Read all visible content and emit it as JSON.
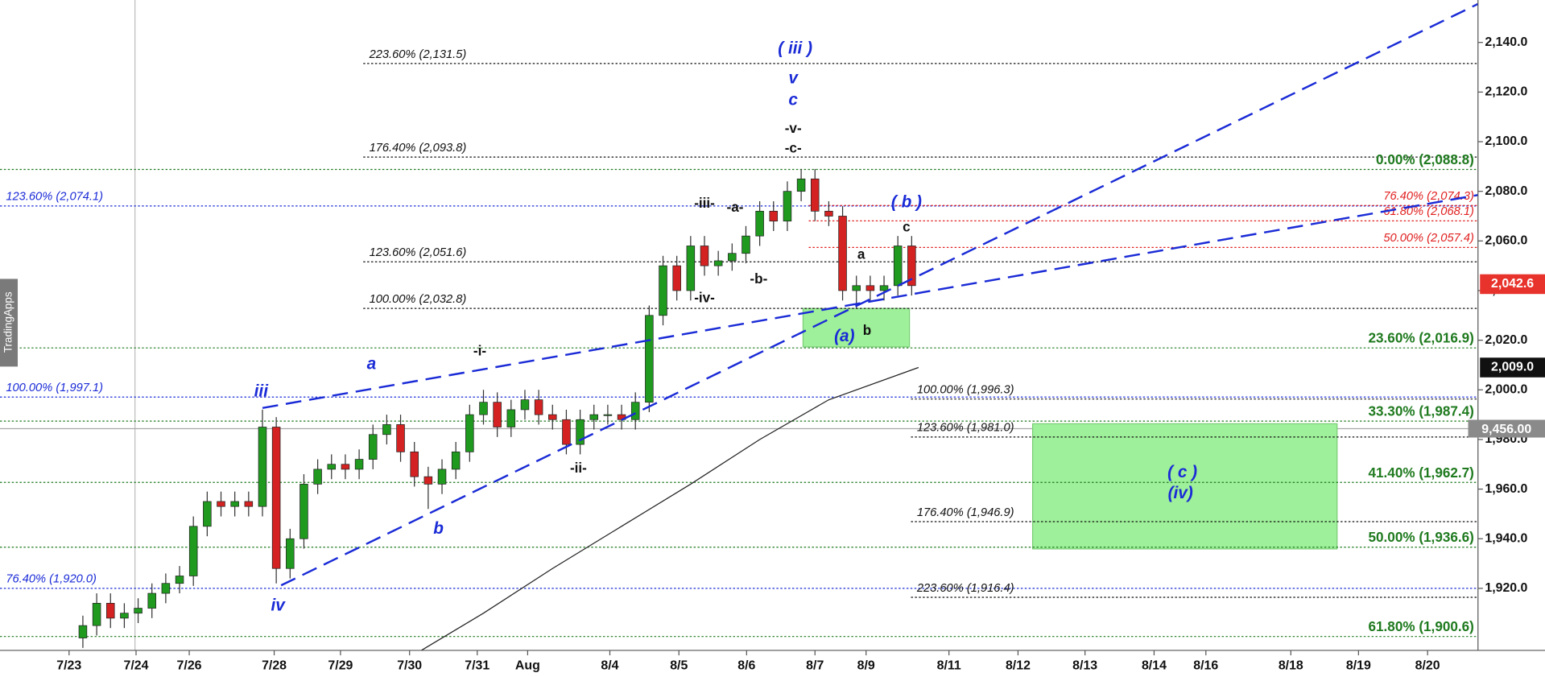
{
  "chart_data": {
    "type": "candlestick",
    "watermark": "TradingApps",
    "up_color": "#1f9a1f",
    "down_color": "#d42222",
    "xlim": [
      0,
      214
    ],
    "xticks": [
      {
        "value": 10,
        "label": "7/23"
      },
      {
        "value": 19.7,
        "label": "7/24"
      },
      {
        "value": 27.4,
        "label": "7/26"
      },
      {
        "value": 39.7,
        "label": "7/28"
      },
      {
        "value": 49.3,
        "label": "7/29"
      },
      {
        "value": 59.3,
        "label": "7/30"
      },
      {
        "value": 69.1,
        "label": "7/31"
      },
      {
        "value": 76.4,
        "label": "Aug"
      },
      {
        "value": 88.3,
        "label": "8/4"
      },
      {
        "value": 98.3,
        "label": "8/5"
      },
      {
        "value": 108.1,
        "label": "8/6"
      },
      {
        "value": 118,
        "label": "8/7"
      },
      {
        "value": 125.4,
        "label": "8/9"
      },
      {
        "value": 137.4,
        "label": "8/11"
      },
      {
        "value": 147.4,
        "label": "8/12"
      },
      {
        "value": 157.1,
        "label": "8/13"
      },
      {
        "value": 167.1,
        "label": "8/14"
      },
      {
        "value": 174.6,
        "label": "8/16"
      },
      {
        "value": 186.9,
        "label": "8/18"
      },
      {
        "value": 196.7,
        "label": "8/19"
      },
      {
        "value": 206.7,
        "label": "8/20"
      }
    ],
    "ylim": [
      1895,
      2157.1
    ],
    "yticks": [
      {
        "value": 1920,
        "label": "1,920.0"
      },
      {
        "value": 1940,
        "label": "1,940.0"
      },
      {
        "value": 1960,
        "label": "1,960.0"
      },
      {
        "value": 1980,
        "label": "1,980.0"
      },
      {
        "value": 2000,
        "label": "2,000.0"
      },
      {
        "value": 2020,
        "label": "2,020.0"
      },
      {
        "value": 2040,
        "label": "2,040.0"
      },
      {
        "value": 2060,
        "label": "2,060.0"
      },
      {
        "value": 2080,
        "label": "2,080.0"
      },
      {
        "value": 2100,
        "label": "2,100.0"
      },
      {
        "value": 2120,
        "label": "2,120.0"
      },
      {
        "value": 2140,
        "label": "2,140.0"
      }
    ],
    "x": [
      12,
      14,
      16,
      18,
      20,
      22,
      24,
      26,
      28,
      30,
      32,
      34,
      36,
      38,
      40,
      42,
      44,
      46,
      48,
      50,
      52,
      54,
      56,
      58,
      60,
      62,
      64,
      66,
      68,
      70,
      72,
      74,
      76,
      78,
      80,
      82,
      84,
      86,
      88,
      90,
      92,
      94,
      96,
      98,
      100,
      102,
      104,
      106,
      108,
      110,
      112,
      114,
      116,
      118,
      120,
      122,
      124,
      126,
      128,
      130,
      132
    ],
    "open": [
      1900,
      1905,
      1914,
      1908,
      1910,
      1912,
      1918,
      1922,
      1925,
      1945,
      1955,
      1953,
      1955,
      1953,
      1985,
      1928,
      1940,
      1962,
      1968,
      1970,
      1968,
      1972,
      1982,
      1986,
      1975,
      1965,
      1962,
      1968,
      1975,
      1990,
      1995,
      1985,
      1992,
      1996,
      1990,
      1988,
      1978,
      1988,
      1990,
      1990,
      1988,
      1995,
      2030,
      2050,
      2040,
      2058,
      2050,
      2052,
      2055,
      2062,
      2072,
      2068,
      2080,
      2085,
      2072,
      2070,
      2040,
      2042,
      2040,
      2042,
      2058
    ],
    "high": [
      1909,
      1918,
      1918,
      1914,
      1916,
      1922,
      1926,
      1929,
      1949,
      1959,
      1959,
      1959,
      1959,
      1992,
      1989,
      1944,
      1966,
      1972,
      1974,
      1974,
      1976,
      1986,
      1990,
      1990,
      1979,
      1969,
      1972,
      1979,
      1994,
      2000,
      1999,
      1996,
      2000,
      2000,
      1994,
      1992,
      1992,
      1994,
      1994,
      1994,
      1999,
      2034,
      2054,
      2054,
      2062,
      2062,
      2056,
      2059,
      2066,
      2076,
      2076,
      2084,
      2089,
      2089,
      2076,
      2074,
      2046,
      2046,
      2046,
      2062,
      2062
    ],
    "low": [
      1896,
      1901,
      1904,
      1904,
      1906,
      1908,
      1914,
      1918,
      1921,
      1941,
      1949,
      1949,
      1949,
      1949,
      1922,
      1924,
      1936,
      1958,
      1964,
      1964,
      1964,
      1968,
      1978,
      1971,
      1961,
      1952,
      1958,
      1964,
      1971,
      1986,
      1981,
      1981,
      1988,
      1986,
      1984,
      1974,
      1974,
      1984,
      1986,
      1984,
      1984,
      1991,
      2026,
      2036,
      2036,
      2046,
      2046,
      2048,
      2051,
      2058,
      2064,
      2064,
      2076,
      2068,
      2066,
      2036,
      2033,
      2036,
      2036,
      2038,
      2038
    ],
    "close": [
      1905,
      1914,
      1908,
      1910,
      1912,
      1918,
      1922,
      1925,
      1945,
      1955,
      1953,
      1955,
      1953,
      1985,
      1928,
      1940,
      1962,
      1968,
      1970,
      1968,
      1972,
      1982,
      1986,
      1975,
      1965,
      1962,
      1968,
      1975,
      1990,
      1995,
      1985,
      1992,
      1996,
      1990,
      1988,
      1978,
      1988,
      1990,
      1990,
      1988,
      1995,
      2030,
      2050,
      2040,
      2058,
      2050,
      2052,
      2055,
      2062,
      2072,
      2068,
      2080,
      2085,
      2072,
      2070,
      2040,
      2042,
      2040,
      2042,
      2058,
      2042
    ],
    "moving_average": {
      "color": "#222222",
      "x": [
        61,
        70,
        80,
        90,
        100,
        110,
        120,
        133
      ],
      "values": [
        1895,
        1910,
        1928,
        1945,
        1962,
        1980,
        1996,
        2009
      ]
    },
    "trend_lines": [
      {
        "color": "#1a2bd6",
        "x": [
          38,
          214
        ],
        "values": [
          1992.7,
          2078.5
        ]
      },
      {
        "color": "#1a2bd6",
        "x": [
          40.7,
          214
        ],
        "values": [
          1921.2,
          2155.5
        ]
      }
    ],
    "levels": [
      {
        "label": "223.60% (2,131.5)",
        "value": 2131.5,
        "color": "#111111",
        "x_start": 52.6,
        "align": "start"
      },
      {
        "label": "176.40% (2,093.8)",
        "value": 2093.8,
        "color": "#111111",
        "x_start": 52.6,
        "align": "start"
      },
      {
        "label": "123.60% (2,051.6)",
        "value": 2051.6,
        "color": "#111111",
        "x_start": 52.6,
        "align": "start"
      },
      {
        "label": "100.00% (2,032.8)",
        "value": 2032.8,
        "color": "#111111",
        "x_start": 52.6,
        "align": "start"
      },
      {
        "label": "123.60% (2,074.1)",
        "value": 2074.1,
        "color": "#1a2bd6",
        "x_start": 0,
        "align": "start"
      },
      {
        "label": "100.00% (1,997.1)",
        "value": 1997.1,
        "color": "#1a2bd6",
        "x_start": 0,
        "align": "start"
      },
      {
        "label": "76.40% (1,920.0)",
        "value": 1920.0,
        "color": "#1a2bd6",
        "x_start": 0,
        "align": "start"
      },
      {
        "label": "0.00% (2,088.8)",
        "value": 2088.8,
        "color": "#1f7a1f",
        "x_start": 0,
        "align": "end"
      },
      {
        "label": "23.60% (2,016.9)",
        "value": 2016.9,
        "color": "#1f7a1f",
        "x_start": 0,
        "align": "end"
      },
      {
        "label": "33.30% (1,987.4)",
        "value": 1987.4,
        "color": "#1f7a1f",
        "x_start": 0,
        "align": "end"
      },
      {
        "label": "41.40% (1,962.7)",
        "value": 1962.7,
        "color": "#1f7a1f",
        "x_start": 0,
        "align": "end"
      },
      {
        "label": "50.00% (1,936.6)",
        "value": 1936.6,
        "color": "#1f7a1f",
        "x_start": 0,
        "align": "end"
      },
      {
        "label": "61.80% (1,900.6)",
        "value": 1900.6,
        "color": "#1f7a1f",
        "x_start": 0,
        "align": "end"
      },
      {
        "label": "76.40% (2,074.3)",
        "value": 2074.3,
        "color": "#e02020",
        "x_start": 117.1,
        "align": "end"
      },
      {
        "label": "61.80% (2,068.1)",
        "value": 2068.1,
        "color": "#e02020",
        "x_start": 117.1,
        "align": "end"
      },
      {
        "label": "50.00% (2,057.4)",
        "value": 2057.4,
        "color": "#e02020",
        "x_start": 117.1,
        "align": "end"
      },
      {
        "label": "100.00% (1,996.3)",
        "value": 1996.3,
        "color": "#111111",
        "x_start": 131.9,
        "align": "start"
      },
      {
        "label": "123.60% (1,981.0)",
        "value": 1981.0,
        "color": "#111111",
        "x_start": 131.9,
        "align": "start"
      },
      {
        "label": "176.40% (1,946.9)",
        "value": 1946.9,
        "color": "#111111",
        "x_start": 131.9,
        "align": "start"
      },
      {
        "label": "223.60% (1,916.4)",
        "value": 1916.4,
        "color": "#111111",
        "x_start": 131.9,
        "align": "start"
      }
    ],
    "wave_labels": [
      {
        "text": "( iii )",
        "color": "#1a2bd6"
      },
      {
        "text": "v",
        "color": "#1a2bd6"
      },
      {
        "text": "c",
        "color": "#1a2bd6"
      },
      {
        "text": "-v-",
        "color": "#111111"
      },
      {
        "text": "-c-",
        "color": "#111111"
      },
      {
        "text": "-iii-",
        "color": "#111111"
      },
      {
        "text": "-a-",
        "color": "#111111"
      },
      {
        "text": "-b-",
        "color": "#111111"
      },
      {
        "text": "-iv-",
        "color": "#111111"
      },
      {
        "text": "( b )",
        "color": "#1a2bd6"
      },
      {
        "text": "c",
        "color": "#111111"
      },
      {
        "text": "a",
        "color": "#111111"
      },
      {
        "text": "(a)",
        "color": "#1a2bd6"
      },
      {
        "text": "b",
        "color": "#111111"
      },
      {
        "text": "-i-",
        "color": "#111111"
      },
      {
        "text": "a",
        "color": "#1a2bd6"
      },
      {
        "text": "iii",
        "color": "#1a2bd6"
      },
      {
        "text": "-ii-",
        "color": "#111111"
      },
      {
        "text": "b",
        "color": "#1a2bd6"
      },
      {
        "text": "iv",
        "color": "#1a2bd6"
      },
      {
        "text": "( c )",
        "color": "#1a2bd6"
      },
      {
        "text": "(iv)",
        "color": "#1a2bd6"
      }
    ],
    "price_tags": [
      {
        "value": 2042.6,
        "label": "2,042.6",
        "color": "#e8332c"
      },
      {
        "value": 2009.0,
        "label": "2,009.0",
        "color": "#111111"
      }
    ],
    "other_tag": {
      "label": "9,456.00",
      "color": "#8a8a8a"
    }
  }
}
